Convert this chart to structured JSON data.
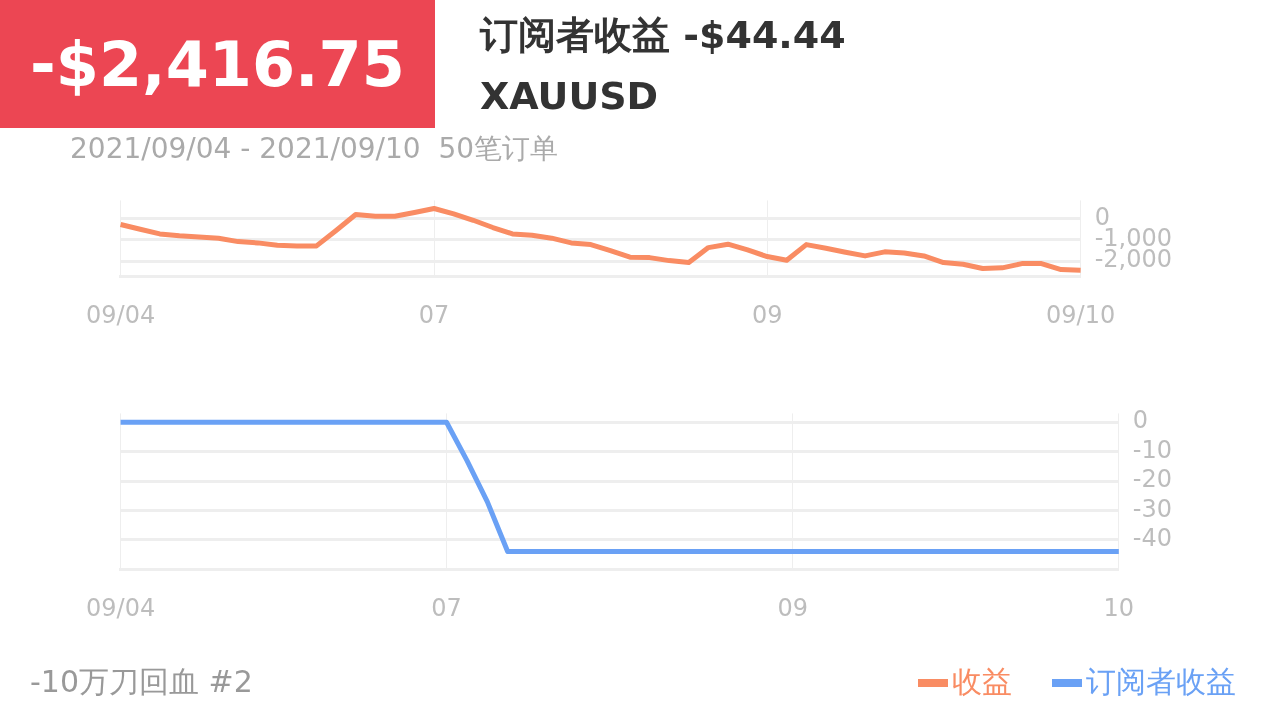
{
  "chart_data": [
    {
      "type": "line",
      "title": "订阅者收益 -$44.44",
      "subtitle": "XAUUSD",
      "annotations": [
        "-$2,416.75",
        "2021/09/04 - 2021/09/10  50笔订单",
        "-10万刀回血 #2"
      ],
      "categories": [
        "09/04",
        null,
        null,
        null,
        null,
        null,
        null,
        null,
        null,
        null,
        null,
        null,
        null,
        null,
        null,
        null,
        "07",
        null,
        null,
        null,
        null,
        null,
        null,
        null,
        null,
        null,
        null,
        null,
        null,
        null,
        null,
        null,
        null,
        "09",
        null,
        null,
        null,
        null,
        null,
        null,
        null,
        null,
        null,
        null,
        null,
        null,
        null,
        null,
        null,
        "09/10"
      ],
      "series": [
        {
          "name": "收益",
          "color": "#f98c63",
          "values": [
            -280,
            -500,
            -720,
            -810,
            -860,
            -920,
            -1080,
            -1140,
            -1250,
            -1280,
            -1280,
            -560,
            190,
            110,
            110,
            280,
            470,
            220,
            -80,
            -420,
            -720,
            -780,
            -920,
            -1140,
            -1220,
            -1500,
            -1810,
            -1830,
            -1970,
            -2060,
            -1360,
            -1200,
            -1470,
            -1780,
            -1950,
            -1220,
            -1390,
            -1580,
            -1750,
            -1560,
            -1610,
            -1750,
            -2060,
            -2140,
            -2340,
            -2310,
            -2110,
            -2110,
            -2390,
            -2420
          ]
        }
      ],
      "ylim": [
        -2700,
        850
      ],
      "yticks": [
        0,
        {
          "value": -1000,
          "label": "-1,000"
        },
        {
          "value": -2000,
          "label": "-2,000"
        }
      ],
      "grid": true,
      "legend": "bottom right",
      "marker": "none",
      "line_style": "solid"
    },
    {
      "type": "line",
      "categories": [
        "09/04",
        null,
        null,
        null,
        null,
        null,
        null,
        null,
        null,
        null,
        null,
        null,
        null,
        null,
        null,
        null,
        "07",
        null,
        null,
        null,
        null,
        null,
        null,
        null,
        null,
        null,
        null,
        null,
        null,
        null,
        null,
        null,
        null,
        "09",
        null,
        null,
        null,
        null,
        null,
        null,
        null,
        null,
        null,
        null,
        null,
        null,
        null,
        null,
        null,
        "10"
      ],
      "series": [
        {
          "name": "订阅者收益",
          "color": "#6aa1f5",
          "values": [
            0,
            0,
            0,
            0,
            0,
            0,
            0,
            0,
            0,
            0,
            0,
            0,
            0,
            0,
            0,
            0,
            0,
            -13,
            -27,
            -44,
            -44,
            -44,
            -44,
            -44,
            -44,
            -44,
            -44,
            -44,
            -44,
            -44,
            -44,
            -44,
            -44,
            -44,
            -44,
            -44,
            -44,
            -44,
            -44,
            -44,
            -44,
            -44,
            -44,
            -44,
            -44,
            -44,
            -44,
            -44,
            -44,
            -44
          ]
        }
      ],
      "ylim": [
        -50,
        3
      ],
      "yticks": [
        0,
        -10,
        -20,
        -30,
        -40
      ],
      "grid": true,
      "legend": "bottom right",
      "marker": "none",
      "line_style": "solid"
    }
  ]
}
